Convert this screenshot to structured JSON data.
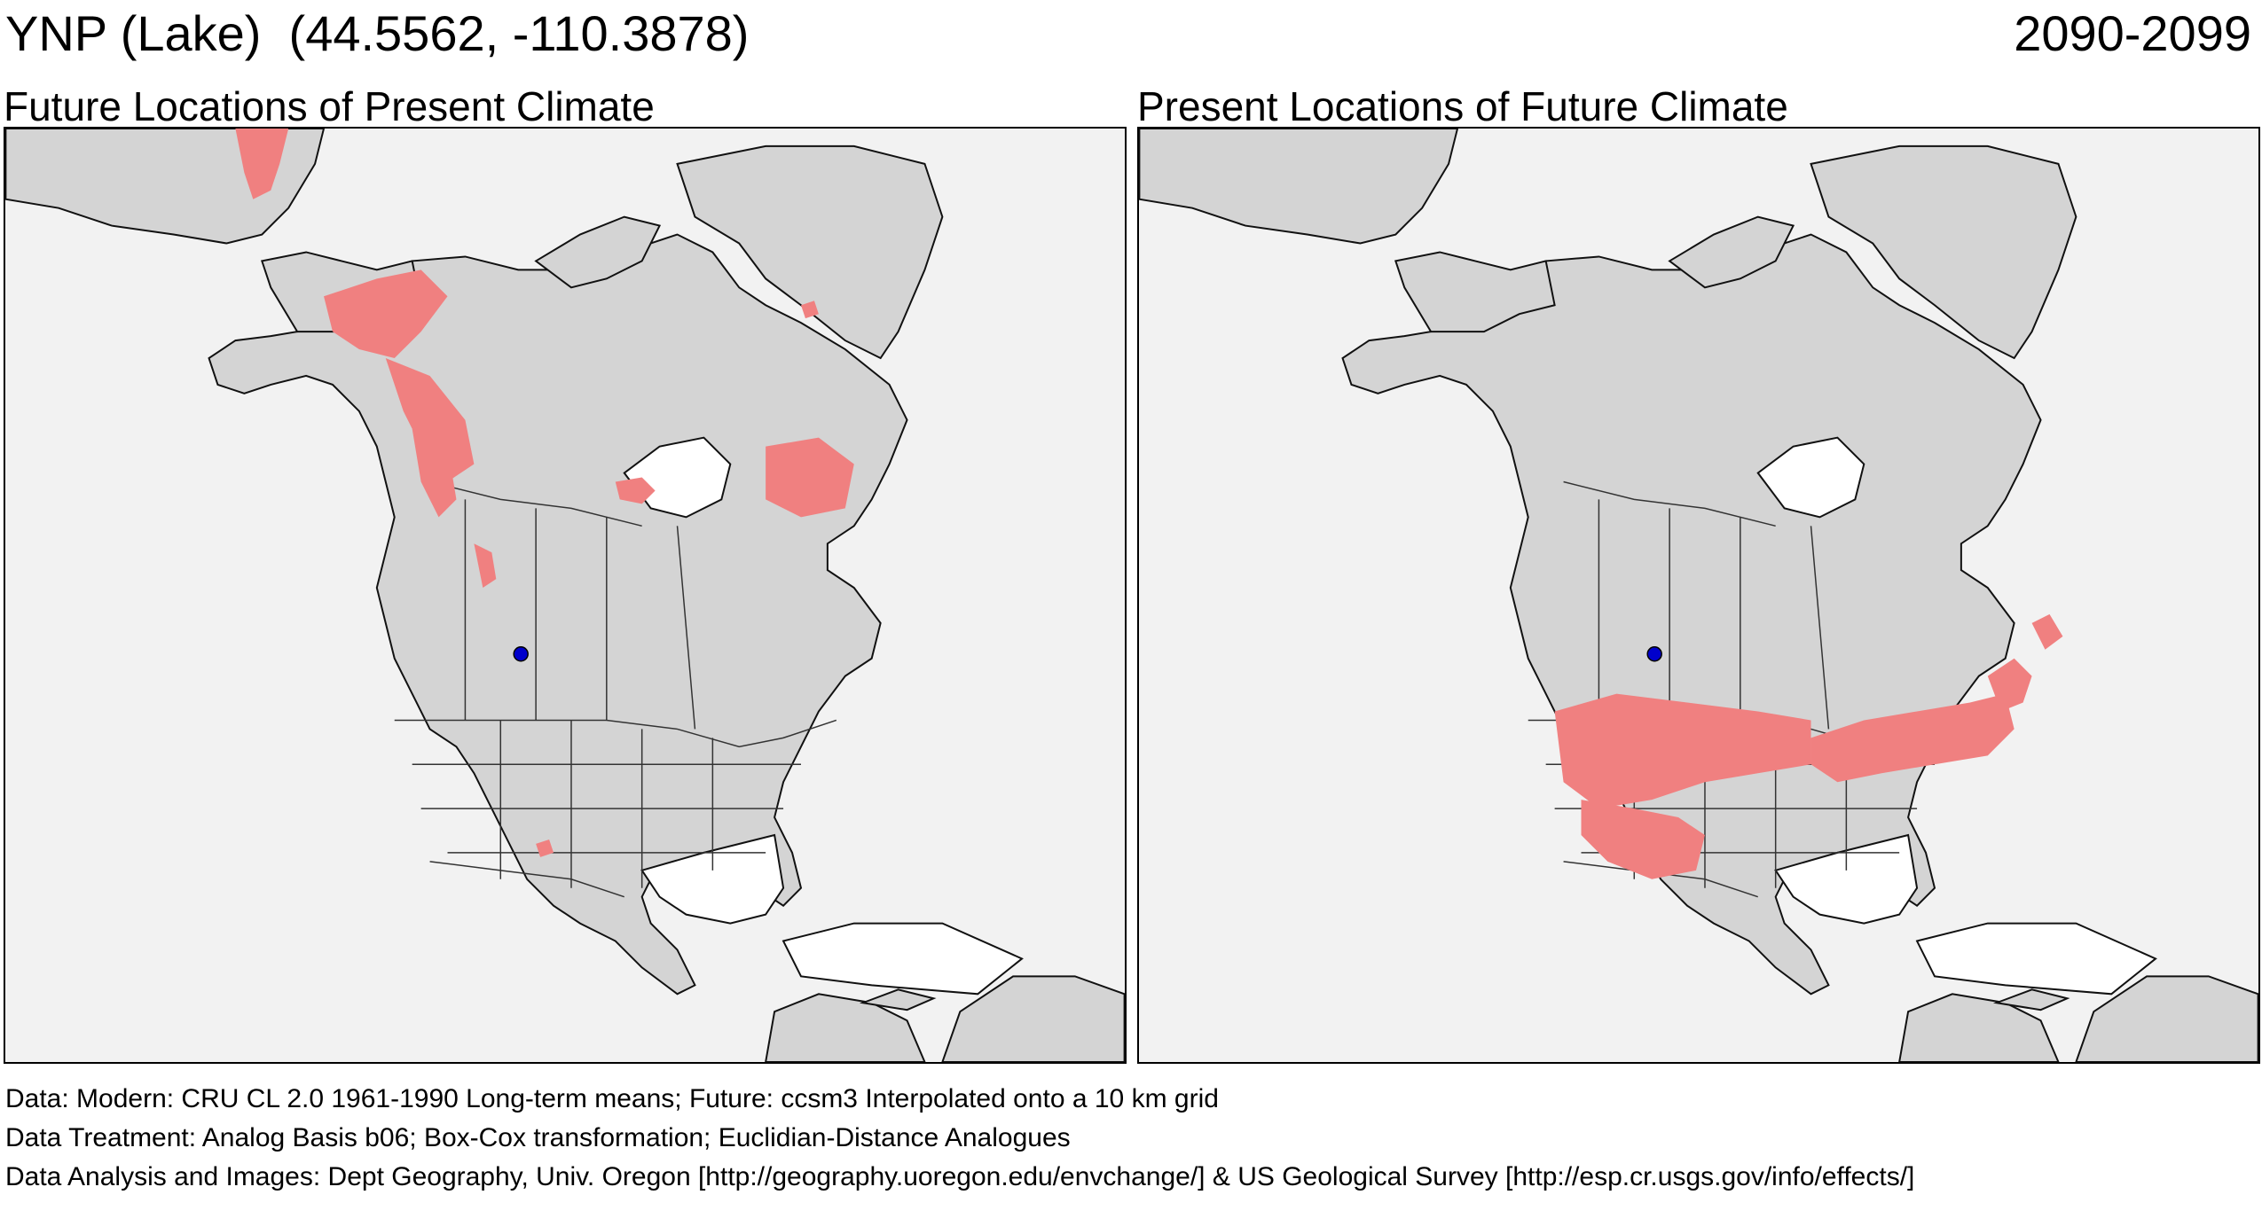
{
  "header": {
    "site_label": "YNP (Lake)  (44.5562, -110.3878)",
    "period": "2090-2099"
  },
  "panels": [
    {
      "title": "Future Locations of Present Climate",
      "site": {
        "lat": 44.5562,
        "lon": -110.3878,
        "color": "#0000cc"
      },
      "analog_color": "#f08080",
      "analog_regions": [
        "alaska",
        "yukon-bc",
        "bc-coast",
        "alberta-rockies",
        "hudson-west",
        "labrador",
        "chukotka",
        "greenland-east",
        "utah"
      ]
    },
    {
      "title": "Present Locations of Future Climate",
      "site": {
        "lat": 44.5562,
        "lon": -110.3878,
        "color": "#0000cc"
      },
      "analog_color": "#f08080",
      "analog_regions": [
        "northern-tier-us",
        "great-lakes-ne",
        "maritimes",
        "newfoundland",
        "intermountain-west"
      ]
    }
  ],
  "credits": {
    "data": "Data:  Modern: CRU CL 2.0 1961-1990 Long-term means; Future: ccsm3 Interpolated onto a 10 km grid",
    "treatment": "Data Treatment:  Analog Basis b06; Box-Cox transformation; Euclidian-Distance Analogues",
    "analysis": "Data Analysis and Images:  Dept Geography, Univ. Oregon [http://geography.uoregon.edu/envchange/] & US Geological Survey [http://esp.cr.usgs.gov/info/effects/]"
  }
}
